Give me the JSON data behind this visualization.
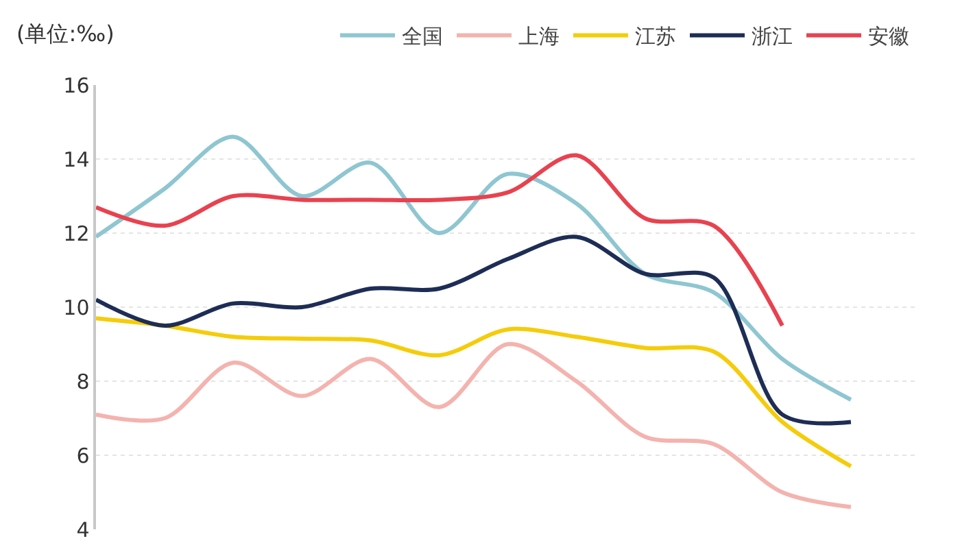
{
  "chart_data": {
    "type": "line",
    "ylabel": "(单位:‰)",
    "categories": [
      null,
      null,
      null,
      null,
      null,
      null,
      null,
      null,
      null,
      null,
      null,
      null
    ],
    "ylim": [
      4,
      16
    ],
    "yticks": [
      4,
      6,
      8,
      10,
      12,
      14,
      16
    ],
    "grid": "y",
    "legend": "top right",
    "tick_labels": "y",
    "marker": "none",
    "line_style": "solid",
    "series": [
      {
        "name": "全国",
        "color": "#8ec6d1",
        "values": [
          11.9,
          13.2,
          14.6,
          13.0,
          13.9,
          12.0,
          13.6,
          12.8,
          10.9,
          10.4,
          8.6,
          7.5
        ]
      },
      {
        "name": "上海",
        "color": "#f4b3ae",
        "values": [
          7.1,
          7.0,
          8.5,
          7.6,
          8.6,
          7.3,
          9.0,
          8.0,
          6.5,
          6.3,
          5.0,
          4.6
        ]
      },
      {
        "name": "江苏",
        "color": "#f5cc0a",
        "values": [
          9.7,
          9.5,
          9.2,
          9.15,
          9.1,
          8.7,
          9.4,
          9.2,
          8.9,
          8.8,
          6.9,
          5.7
        ]
      },
      {
        "name": "浙江",
        "color": "#1e2d55",
        "values": [
          10.2,
          9.5,
          10.1,
          10.0,
          10.5,
          10.5,
          11.3,
          11.9,
          10.9,
          10.8,
          7.1,
          6.9
        ]
      },
      {
        "name": "安徽",
        "color": "#e8424f",
        "values": [
          12.7,
          12.2,
          13.0,
          12.9,
          12.9,
          12.9,
          13.1,
          14.1,
          12.4,
          12.2,
          9.5,
          null
        ]
      }
    ]
  }
}
